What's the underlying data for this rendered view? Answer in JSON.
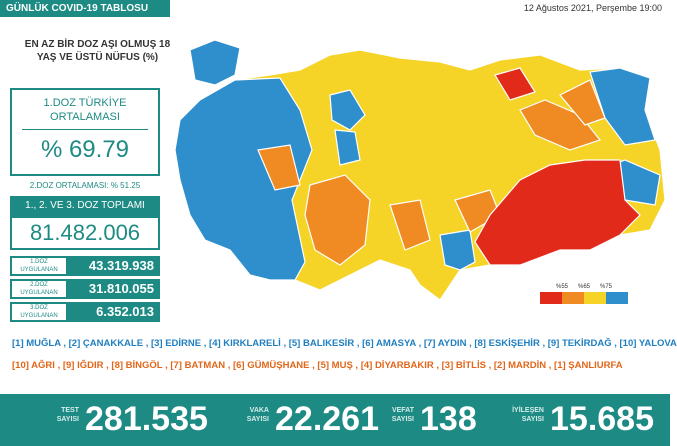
{
  "header": {
    "title": "GÜNLÜK COVID-19 TABLOSU",
    "date": "12 Ağustos 2021, Perşembe 19:00"
  },
  "panel": {
    "heading": "EN AZ BİR DOZ AŞI OLMUŞ 18 YAŞ VE ÜSTÜ NÜFUS (%)",
    "avg_label": "1.DOZ TÜRKİYE ORTALAMASI",
    "avg_value": "% 69.79",
    "dose2": "2.DOZ ORTALAMASI: % 51.25",
    "total_label": "1., 2. VE 3. DOZ TOPLAMI",
    "total_value": "81.482.006",
    "doses": [
      {
        "label_top": "1.DOZ",
        "label_bottom": "UYGULANAN",
        "value": "43.319.938"
      },
      {
        "label_top": "2.DOZ",
        "label_bottom": "UYGULANAN",
        "value": "31.810.055"
      },
      {
        "label_top": "3.DOZ",
        "label_bottom": "UYGULANAN",
        "value": "6.352.013"
      }
    ]
  },
  "legend": [
    "%55",
    "%65",
    "%75"
  ],
  "rankings": {
    "best": "[1] MUĞLA , [2] ÇANAKKALE , [3] EDİRNE , [4] KIRKLARELİ , [5] BALIKESİR , [6] AMASYA , [7] AYDIN , [8] ESKİŞEHİR , [9] TEKİRDAĞ , [10] YALOVA",
    "worst": "[10] AĞRI , [9] IĞDIR , [8] BİNGÖL , [7] BATMAN , [6] GÜMÜŞHANE , [5] MUŞ , [4] DİYARBAKIR , [3] BİTLİS , [2] MARDİN , [1] ŞANLIURFA"
  },
  "stats": [
    {
      "label_top": "TEST",
      "label_bottom": "SAYISI",
      "value": "281.535"
    },
    {
      "label_top": "VAKA",
      "label_bottom": "SAYISI",
      "value": "22.261"
    },
    {
      "label_top": "VEFAT",
      "label_bottom": "SAYISI",
      "value": "138"
    },
    {
      "label_top": "İYİLEŞEN",
      "label_bottom": "SAYISI",
      "value": "15.685"
    }
  ]
}
